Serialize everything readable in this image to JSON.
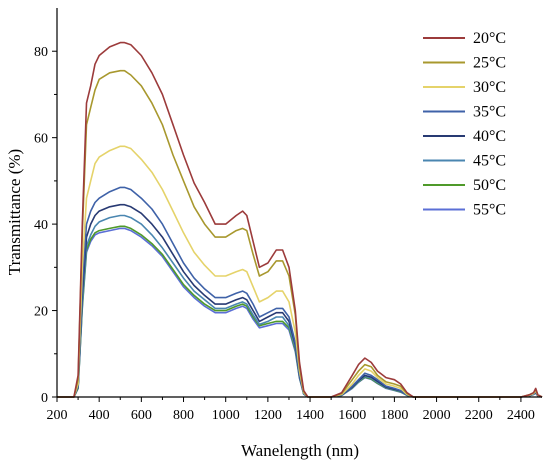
{
  "chart_data": {
    "type": "line",
    "title": "",
    "xlabel": "Wanelength (nm)",
    "ylabel": "Transmittance (%)",
    "xlim": [
      200,
      2500
    ],
    "ylim": [
      0,
      90
    ],
    "x_ticks": [
      "200",
      "400",
      "600",
      "800",
      "1000",
      "1200",
      "1400",
      "1600",
      "1800",
      "2000",
      "2200",
      "2400"
    ],
    "y_ticks": [
      "0",
      "20",
      "40",
      "60",
      "80"
    ],
    "grid": false,
    "legend_position": "top-right",
    "x": [
      200,
      280,
      300,
      320,
      340,
      360,
      380,
      400,
      450,
      500,
      520,
      550,
      600,
      650,
      700,
      750,
      800,
      850,
      900,
      950,
      1000,
      1050,
      1080,
      1100,
      1130,
      1160,
      1200,
      1240,
      1270,
      1300,
      1330,
      1350,
      1370,
      1390,
      1410,
      1450,
      1500,
      1550,
      1600,
      1630,
      1660,
      1690,
      1720,
      1760,
      1800,
      1830,
      1860,
      1890,
      1950,
      2000,
      2100,
      2200,
      2300,
      2400,
      2440,
      2460,
      2470,
      2480,
      2500
    ],
    "series": [
      {
        "name": "20°C",
        "color": "#9c3b3b",
        "values": [
          0,
          0,
          5,
          40,
          68,
          72,
          77,
          79,
          81,
          82,
          82,
          81.5,
          79,
          75,
          70,
          63,
          56,
          49.5,
          45,
          40,
          40,
          42,
          43,
          42,
          36,
          30,
          31,
          34,
          34,
          30,
          20,
          8,
          1.5,
          0,
          0,
          0,
          0,
          1,
          5,
          7.5,
          9,
          8,
          6,
          4.5,
          4,
          3,
          1,
          0,
          0,
          0,
          0,
          0,
          0,
          0,
          0.5,
          1,
          2,
          0.5,
          0
        ]
      },
      {
        "name": "25°C",
        "color": "#a8982e",
        "values": [
          0,
          0,
          4,
          38,
          63,
          67,
          71,
          73.5,
          75,
          75.5,
          75.5,
          74.5,
          72,
          68,
          63,
          56,
          50,
          44,
          40,
          37,
          37,
          38.5,
          39,
          38.5,
          33,
          28,
          29,
          31.5,
          31.5,
          28,
          19,
          7,
          1.2,
          0,
          0,
          0,
          0,
          0.8,
          4,
          6,
          7.5,
          7,
          5,
          3.5,
          3,
          2.5,
          0.8,
          0,
          0,
          0,
          0,
          0,
          0,
          0,
          0.5,
          1,
          1.8,
          0.5,
          0
        ]
      },
      {
        "name": "30°C",
        "color": "#e5d36a",
        "values": [
          0,
          0,
          3,
          30,
          46,
          50,
          54,
          55.5,
          57,
          58,
          58,
          57.5,
          55,
          52,
          48,
          43,
          38,
          33.5,
          30.5,
          28,
          28,
          29,
          29.5,
          29,
          25.5,
          22,
          23,
          24.5,
          24.5,
          22,
          15,
          6,
          1,
          0,
          0,
          0,
          0,
          0.6,
          3,
          5,
          6.5,
          6,
          4.5,
          3,
          2.5,
          2,
          0.6,
          0,
          0,
          0,
          0,
          0,
          0,
          0,
          0.4,
          0.8,
          1.5,
          0.4,
          0
        ]
      },
      {
        "name": "35°C",
        "color": "#3f62a8",
        "values": [
          0,
          0,
          2.5,
          26,
          40,
          43,
          45,
          46,
          47.5,
          48.5,
          48.5,
          48,
          46,
          43.5,
          40,
          35.5,
          31,
          27.5,
          25,
          23,
          23,
          24,
          24.5,
          24,
          21.5,
          18.5,
          19.5,
          20.5,
          20.5,
          18.5,
          12.5,
          5,
          0.8,
          0,
          0,
          0,
          0,
          0.5,
          2.5,
          4,
          5.5,
          5,
          4,
          2.5,
          2,
          1.5,
          0.5,
          0,
          0,
          0,
          0,
          0,
          0,
          0,
          0.3,
          0.7,
          1.2,
          0.3,
          0
        ]
      },
      {
        "name": "40°C",
        "color": "#283a73",
        "values": [
          0,
          0,
          2.4,
          24,
          37,
          40,
          42,
          43,
          44,
          44.5,
          44.5,
          44,
          42.5,
          40,
          37,
          33,
          29,
          25.8,
          23.5,
          21.5,
          21.5,
          22.5,
          23,
          22.5,
          20,
          17.5,
          18.5,
          19.5,
          19.5,
          17.5,
          12,
          4.8,
          0.8,
          0,
          0,
          0,
          0,
          0.5,
          2.3,
          3.8,
          5,
          4.6,
          3.6,
          2.3,
          1.8,
          1.4,
          0.5,
          0,
          0,
          0,
          0,
          0,
          0,
          0,
          0.3,
          0.7,
          1.1,
          0.3,
          0
        ]
      },
      {
        "name": "45°C",
        "color": "#4a86b0",
        "values": [
          0,
          0,
          2.2,
          22,
          35,
          37.5,
          39.5,
          40.5,
          41.5,
          42,
          42,
          41.5,
          40,
          37.5,
          34.5,
          31,
          27.5,
          24.5,
          22.5,
          20.5,
          20.5,
          21.5,
          22,
          21.5,
          19,
          16.8,
          17.5,
          18.5,
          18.5,
          16.5,
          11.5,
          4.6,
          0.7,
          0,
          0,
          0,
          0,
          0.4,
          2.2,
          3.6,
          4.8,
          4.4,
          3.4,
          2.2,
          1.7,
          1.3,
          0.4,
          0,
          0,
          0,
          0,
          0,
          0,
          0,
          0.3,
          0.6,
          1,
          0.3,
          0
        ]
      },
      {
        "name": "50°C",
        "color": "#4f9a2a",
        "values": [
          0,
          0,
          2,
          21,
          34,
          36.5,
          38,
          38.5,
          39,
          39.5,
          39.5,
          39,
          37.5,
          35.5,
          33,
          29.5,
          26,
          23.5,
          21.5,
          20,
          20,
          21,
          21.5,
          21,
          18.5,
          16.5,
          17,
          17.5,
          17.5,
          16,
          11,
          4.5,
          0.7,
          0,
          0,
          0,
          0,
          0.4,
          2.1,
          3.5,
          4.6,
          4.2,
          3.2,
          2.1,
          1.6,
          1.2,
          0.4,
          0,
          0,
          0,
          0,
          0,
          0,
          0,
          0.3,
          0.6,
          1,
          0.3,
          0
        ]
      },
      {
        "name": "55°C",
        "color": "#5b6fd6",
        "values": [
          0,
          0,
          2,
          20.5,
          33.5,
          36,
          37.5,
          38,
          38.5,
          39,
          39,
          38.5,
          37,
          35,
          32.5,
          29,
          25.5,
          23,
          21,
          19.5,
          19.5,
          20.5,
          21,
          20.5,
          18,
          16,
          16.5,
          17,
          17,
          15.5,
          10.5,
          4.3,
          0.7,
          0,
          0,
          0,
          0,
          0.4,
          2,
          3.4,
          4.5,
          4.1,
          3.1,
          2,
          1.5,
          1.1,
          0.4,
          0,
          0,
          0,
          0,
          0,
          0,
          0,
          0.3,
          0.6,
          0.9,
          0.3,
          0
        ]
      }
    ]
  }
}
